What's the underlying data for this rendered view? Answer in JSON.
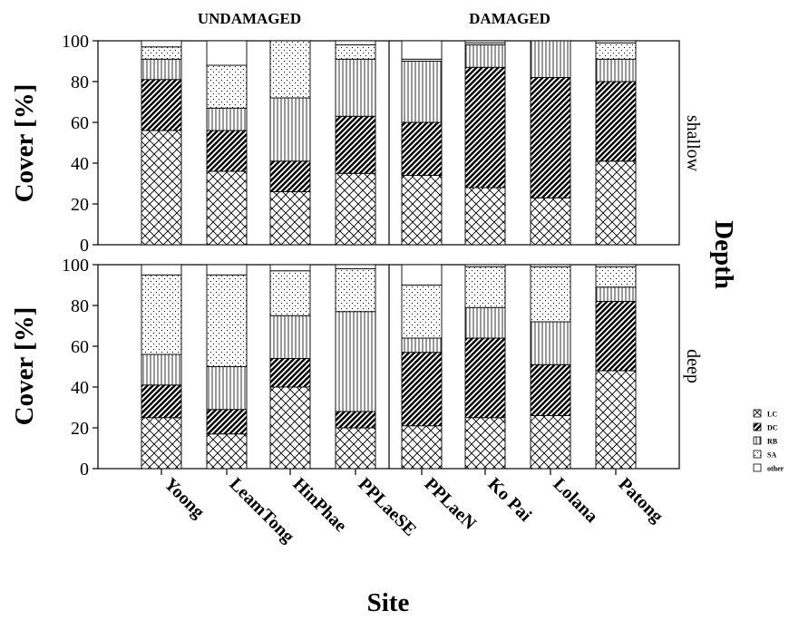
{
  "chart_data": {
    "type": "bar",
    "stacked": true,
    "xlabel": "Site",
    "ylabel": "Cover [%]",
    "facet_label": "Depth",
    "ylim": [
      0,
      100
    ],
    "yticks": [
      0,
      20,
      40,
      60,
      80,
      100
    ],
    "groups": [
      "UNDAMAGED",
      "DAMAGED"
    ],
    "categories": [
      "Yoong",
      "LeamTong",
      "HinPhae",
      "PPLaeSE",
      "PPLaeN",
      "Ko Pai",
      "Lolana",
      "Patong"
    ],
    "legend": {
      "position": "right",
      "entries": [
        {
          "key": "LC",
          "label": "LC",
          "pattern": "crosshatch"
        },
        {
          "key": "DC",
          "label": "DC",
          "pattern": "diagonal-dense"
        },
        {
          "key": "RB",
          "label": "RB",
          "pattern": "vertical-lines"
        },
        {
          "key": "SA",
          "label": "SA",
          "pattern": "dots"
        },
        {
          "key": "other",
          "label": "other",
          "pattern": "blank"
        }
      ]
    },
    "panels": [
      {
        "label": "shallow",
        "series": [
          {
            "name": "LC",
            "values": [
              56,
              36,
              26,
              35,
              34,
              28,
              23,
              41
            ]
          },
          {
            "name": "DC",
            "values": [
              25,
              20,
              15,
              28,
              26,
              59,
              59,
              39
            ]
          },
          {
            "name": "RB",
            "values": [
              10,
              11,
              31,
              28,
              30,
              11,
              18,
              11
            ]
          },
          {
            "name": "SA",
            "values": [
              6,
              21,
              28,
              7,
              1,
              1,
              0,
              8
            ]
          },
          {
            "name": "other",
            "values": [
              3,
              12,
              0,
              2,
              9,
              1,
              0,
              1
            ]
          }
        ]
      },
      {
        "label": "deep",
        "series": [
          {
            "name": "LC",
            "values": [
              25,
              17,
              40,
              20,
              21,
              25,
              26,
              48
            ]
          },
          {
            "name": "DC",
            "values": [
              16,
              12,
              14,
              8,
              36,
              39,
              25,
              34
            ]
          },
          {
            "name": "RB",
            "values": [
              15,
              21,
              21,
              49,
              7,
              15,
              21,
              7
            ]
          },
          {
            "name": "SA",
            "values": [
              39,
              45,
              22,
              21,
              26,
              20,
              27,
              10
            ]
          },
          {
            "name": "other",
            "values": [
              5,
              5,
              3,
              2,
              10,
              1,
              1,
              1
            ]
          }
        ]
      }
    ],
    "grid": false
  }
}
